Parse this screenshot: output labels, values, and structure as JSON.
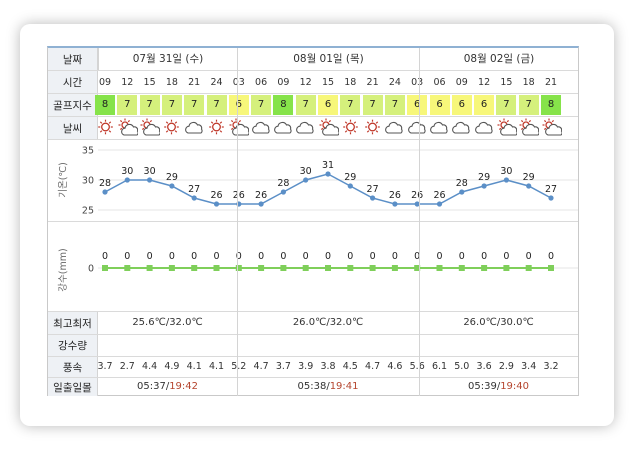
{
  "labels": {
    "date": "날짜",
    "time": "시간",
    "golf_index": "골프지수",
    "weather": "날씨",
    "temp_axis": "기온(℃)",
    "precip_axis": "강수(mm)",
    "hilo": "최고최저",
    "precip_amount": "강수량",
    "wind": "풍속",
    "sun": "일출일몰"
  },
  "days": [
    {
      "date": "07월 31일 (수)",
      "hilo_low": "25.6℃",
      "hilo_high": "32.0℃",
      "sunrise": "05:37",
      "sunset": "19:42"
    },
    {
      "date": "08월 01일 (목)",
      "hilo_low": "26.0℃",
      "hilo_high": "32.0℃",
      "sunrise": "05:38",
      "sunset": "19:41"
    },
    {
      "date": "08월 02일 (금)",
      "hilo_low": "26.0℃",
      "hilo_high": "30.0℃",
      "sunrise": "05:39",
      "sunset": "19:40"
    }
  ],
  "hours": [
    "09",
    "12",
    "15",
    "18",
    "21",
    "24",
    "03",
    "06",
    "09",
    "12",
    "15",
    "18",
    "21",
    "24",
    "03",
    "06",
    "09",
    "12",
    "15",
    "18",
    "21"
  ],
  "golf": [
    "8",
    "7",
    "7",
    "7",
    "7",
    "7",
    "6",
    "7",
    "8",
    "7",
    "6",
    "7",
    "7",
    "7",
    "6",
    "6",
    "6",
    "6",
    "7",
    "7",
    "8"
  ],
  "golf_colors": {
    "8": "#86e34a",
    "7": "#d5f07c",
    "6": "#f7f77a"
  },
  "weather_icons": [
    "sun",
    "sun-cloud",
    "sun-cloud",
    "sun",
    "cloud",
    "sun",
    "sun-cloud",
    "cloud",
    "cloud",
    "cloud",
    "sun-cloud",
    "sun",
    "sun",
    "cloud",
    "cloud",
    "cloud",
    "cloud",
    "cloud",
    "sun-cloud",
    "sun-cloud",
    "sun-cloud"
  ],
  "wind": [
    "3.7",
    "2.7",
    "4.4",
    "4.9",
    "4.1",
    "4.1",
    "5.2",
    "4.7",
    "3.7",
    "3.9",
    "3.8",
    "4.5",
    "4.7",
    "4.6",
    "5.6",
    "6.1",
    "5.0",
    "3.6",
    "2.9",
    "3.4",
    "3.2"
  ],
  "temp_ticks": [
    "35",
    "30",
    "25"
  ],
  "precip_tick": "0",
  "chart_data": [
    {
      "type": "line",
      "x": [
        "09",
        "12",
        "15",
        "18",
        "21",
        "24",
        "03",
        "06",
        "09",
        "12",
        "15",
        "18",
        "21",
        "24",
        "03",
        "06",
        "09",
        "12",
        "15",
        "18",
        "21"
      ],
      "series": [
        {
          "values": [
            28,
            30,
            30,
            29,
            27,
            26,
            26,
            26,
            28,
            30,
            31,
            29,
            27,
            26,
            26,
            26,
            28,
            29,
            30,
            29,
            27
          ]
        }
      ],
      "ylabel": "기온(℃)",
      "ylim": [
        25,
        35
      ],
      "grid": true,
      "color": "#5b8fc7"
    },
    {
      "type": "line",
      "x": [
        "09",
        "12",
        "15",
        "18",
        "21",
        "24",
        "03",
        "06",
        "09",
        "12",
        "15",
        "18",
        "21",
        "24",
        "03",
        "06",
        "09",
        "12",
        "15",
        "18",
        "21"
      ],
      "series": [
        {
          "values": [
            0,
            0,
            0,
            0,
            0,
            0,
            0,
            0,
            0,
            0,
            0,
            0,
            0,
            0,
            0,
            0,
            0,
            0,
            0,
            0,
            0
          ]
        }
      ],
      "ylabel": "강수(mm)",
      "grid": true,
      "color": "#7fcf5a"
    }
  ]
}
